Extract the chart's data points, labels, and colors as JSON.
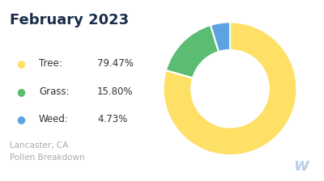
{
  "title": "February 2023",
  "title_color": "#1a2e4a",
  "title_fontsize": 13,
  "title_fontweight": "bold",
  "subtitle": "Lancaster, CA\nPollen Breakdown",
  "subtitle_color": "#aaaaaa",
  "subtitle_fontsize": 7.5,
  "slices": [
    79.47,
    15.8,
    4.73
  ],
  "labels": [
    "Tree",
    "Grass",
    "Weed"
  ],
  "percentages": [
    "79.47%",
    "15.80%",
    "4.73%"
  ],
  "colors": [
    "#FFE066",
    "#5BBD72",
    "#5BA4E0"
  ],
  "background_color": "#ffffff",
  "legend_label_color": "#333333",
  "legend_fontsize": 8.5,
  "watermark_color": "#b8cfe8",
  "startangle": 90,
  "donut_width": 0.42
}
